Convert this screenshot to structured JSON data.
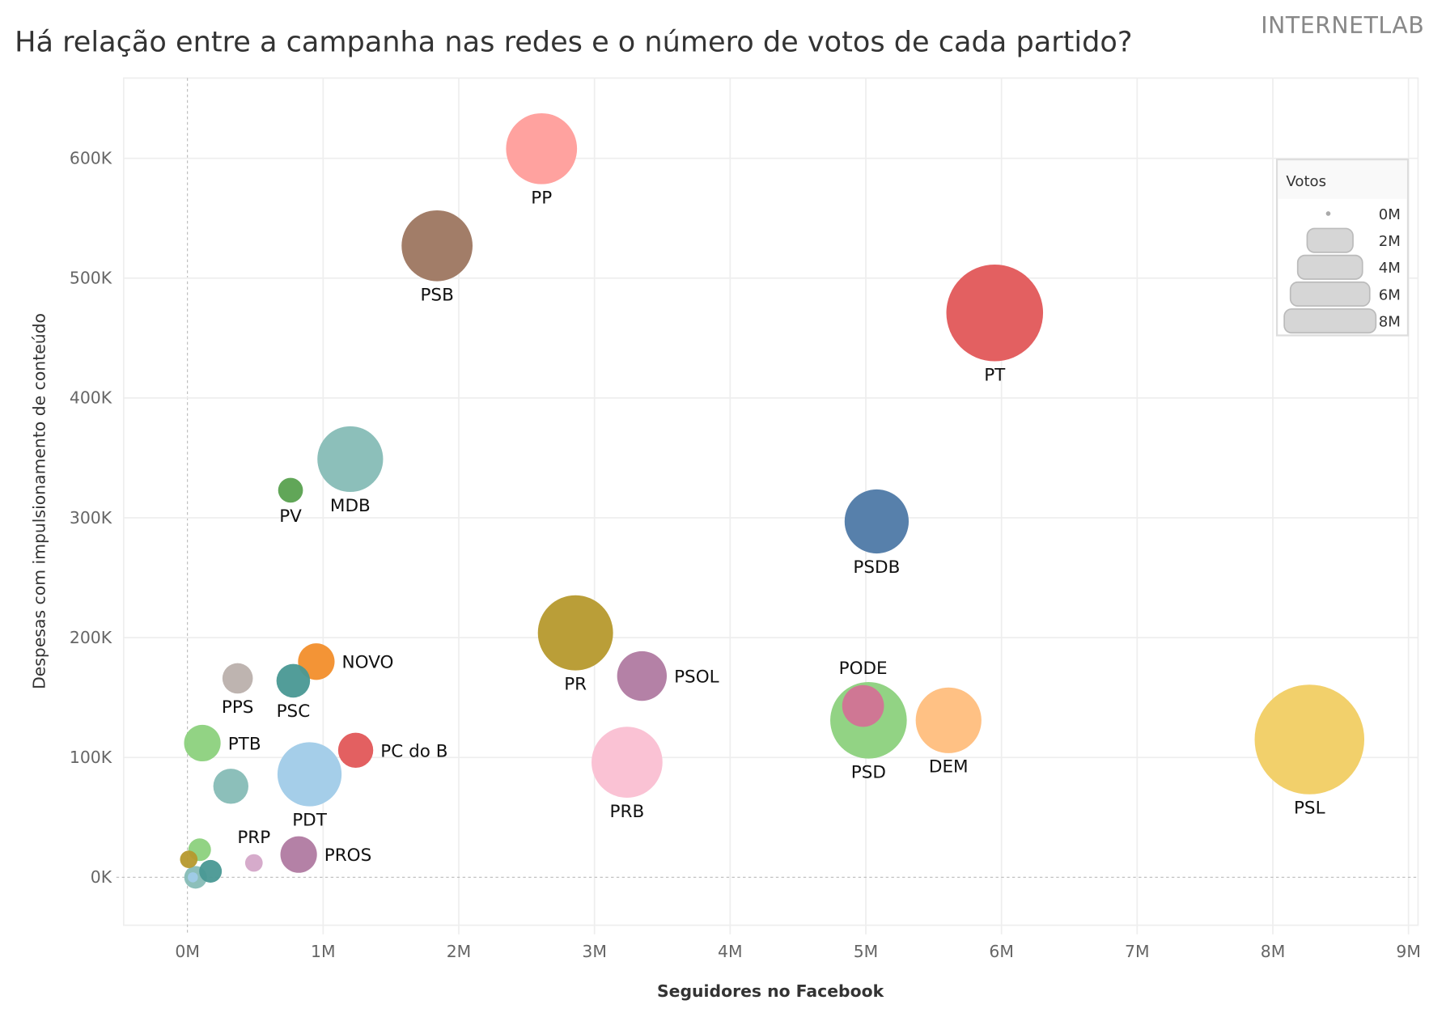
{
  "header": {
    "title": "Há relação entre a campanha nas redes e o número de votos de cada partido?",
    "brand": "INTERNETLAB"
  },
  "chart_data": {
    "type": "scatter",
    "title": "Há relação entre a campanha nas redes e o número de votos de cada partido?",
    "xlabel": "Seguidores no Facebook",
    "ylabel": "Despesas com impulsionamento de conteúdo",
    "xlim": [
      -0.47,
      9.07
    ],
    "ylim": [
      -40,
      667
    ],
    "x_unit": "M",
    "y_unit": "K",
    "x_ticks": [
      "0M",
      "1M",
      "2M",
      "3M",
      "4M",
      "5M",
      "6M",
      "7M",
      "8M",
      "9M"
    ],
    "y_ticks": [
      "0K",
      "100K",
      "200K",
      "300K",
      "400K",
      "500K",
      "600K"
    ],
    "grid": true,
    "size_field": "Votos",
    "legend": {
      "title": "Votos",
      "placement": "top-right",
      "entries": [
        "0M",
        "2M",
        "4M",
        "6M",
        "8M"
      ]
    },
    "points": [
      {
        "party": "PSL",
        "x": 8.27,
        "y": 115,
        "votes": 11.7,
        "color": "#F1CE63",
        "label_position": "below"
      },
      {
        "party": "PT",
        "x": 5.95,
        "y": 471,
        "votes": 9.1,
        "color": "#E15759",
        "label_position": "below"
      },
      {
        "party": "PSD",
        "x": 5.02,
        "y": 131,
        "votes": 5.7,
        "color": "#8CD17D",
        "label_position": "below"
      },
      {
        "party": "PR",
        "x": 2.86,
        "y": 204,
        "votes": 5.5,
        "color": "#B6992D",
        "label_position": "below"
      },
      {
        "party": "PP",
        "x": 2.61,
        "y": 608,
        "votes": 4.9,
        "color": "#FF9D9A",
        "label_position": "below"
      },
      {
        "party": "PSB",
        "x": 1.84,
        "y": 527,
        "votes": 4.9,
        "color": "#9D7660",
        "label_position": "below"
      },
      {
        "party": "PRB",
        "x": 3.24,
        "y": 96,
        "votes": 4.9,
        "color": "#FABFD2",
        "label_position": "below"
      },
      {
        "party": "MDB",
        "x": 1.2,
        "y": 349,
        "votes": 4.2,
        "color": "#86BCB6",
        "label_position": "below"
      },
      {
        "party": "DEM",
        "x": 5.61,
        "y": 131,
        "votes": 4.2,
        "color": "#FFBE7D",
        "label_position": "below"
      },
      {
        "party": "PSDB",
        "x": 5.08,
        "y": 297,
        "votes": 4.0,
        "color": "#4E79A7",
        "label_position": "below"
      },
      {
        "party": "PDT",
        "x": 0.9,
        "y": 86,
        "votes": 4.0,
        "color": "#A0CBE8",
        "label_position": "below"
      },
      {
        "party": "PSOL",
        "x": 3.35,
        "y": 168,
        "votes": 2.4,
        "color": "#B07AA1",
        "label_position": "right"
      },
      {
        "party": "PODE",
        "x": 4.98,
        "y": 143,
        "votes": 1.7,
        "color": "#D37295",
        "label_position": "above"
      },
      {
        "party": "NOVO",
        "x": 0.95,
        "y": 180,
        "votes": 1.3,
        "color": "#F28E2B",
        "label_position": "right"
      },
      {
        "party": "PTB",
        "x": 0.11,
        "y": 112,
        "votes": 1.3,
        "color": "#8CD17D",
        "label_position": "right"
      },
      {
        "party": "PROS",
        "x": 0.82,
        "y": 19,
        "votes": 1.3,
        "color": "#B07AA1",
        "label_position": "right"
      },
      {
        "party": "PC do B",
        "x": 1.24,
        "y": 106,
        "votes": 1.2,
        "color": "#E15759",
        "label_position": "right"
      },
      {
        "party": "",
        "x": 0.32,
        "y": 76,
        "votes": 1.2,
        "color": "#86BCB6",
        "label_position": "none"
      },
      {
        "party": "PSC",
        "x": 0.78,
        "y": 164,
        "votes": 1.1,
        "color": "#499894",
        "label_position": "below"
      },
      {
        "party": "PPS",
        "x": 0.37,
        "y": 166,
        "votes": 0.9,
        "color": "#BAB0AC",
        "label_position": "below"
      },
      {
        "party": "PV",
        "x": 0.76,
        "y": 323,
        "votes": 0.6,
        "color": "#59A14F",
        "label_position": "below"
      },
      {
        "party": "",
        "x": 0.09,
        "y": 23,
        "votes": 0.5,
        "color": "#8CD17D",
        "label_position": "none"
      },
      {
        "party": "",
        "x": 0.06,
        "y": 0,
        "votes": 0.5,
        "color": "#86BCB6",
        "label_position": "none"
      },
      {
        "party": "",
        "x": 0.17,
        "y": 5,
        "votes": 0.5,
        "color": "#499894",
        "label_position": "none"
      },
      {
        "party": "PRP",
        "x": 0.49,
        "y": 12,
        "votes": 0.3,
        "color": "#D4A6C8",
        "label_position": "above"
      },
      {
        "party": "",
        "x": 0.01,
        "y": 15,
        "votes": 0.3,
        "color": "#B6992D",
        "label_position": "none"
      },
      {
        "party": "",
        "x": 0.04,
        "y": 0,
        "votes": 0.1,
        "color": "#A0CBE8",
        "label_position": "none"
      }
    ]
  }
}
